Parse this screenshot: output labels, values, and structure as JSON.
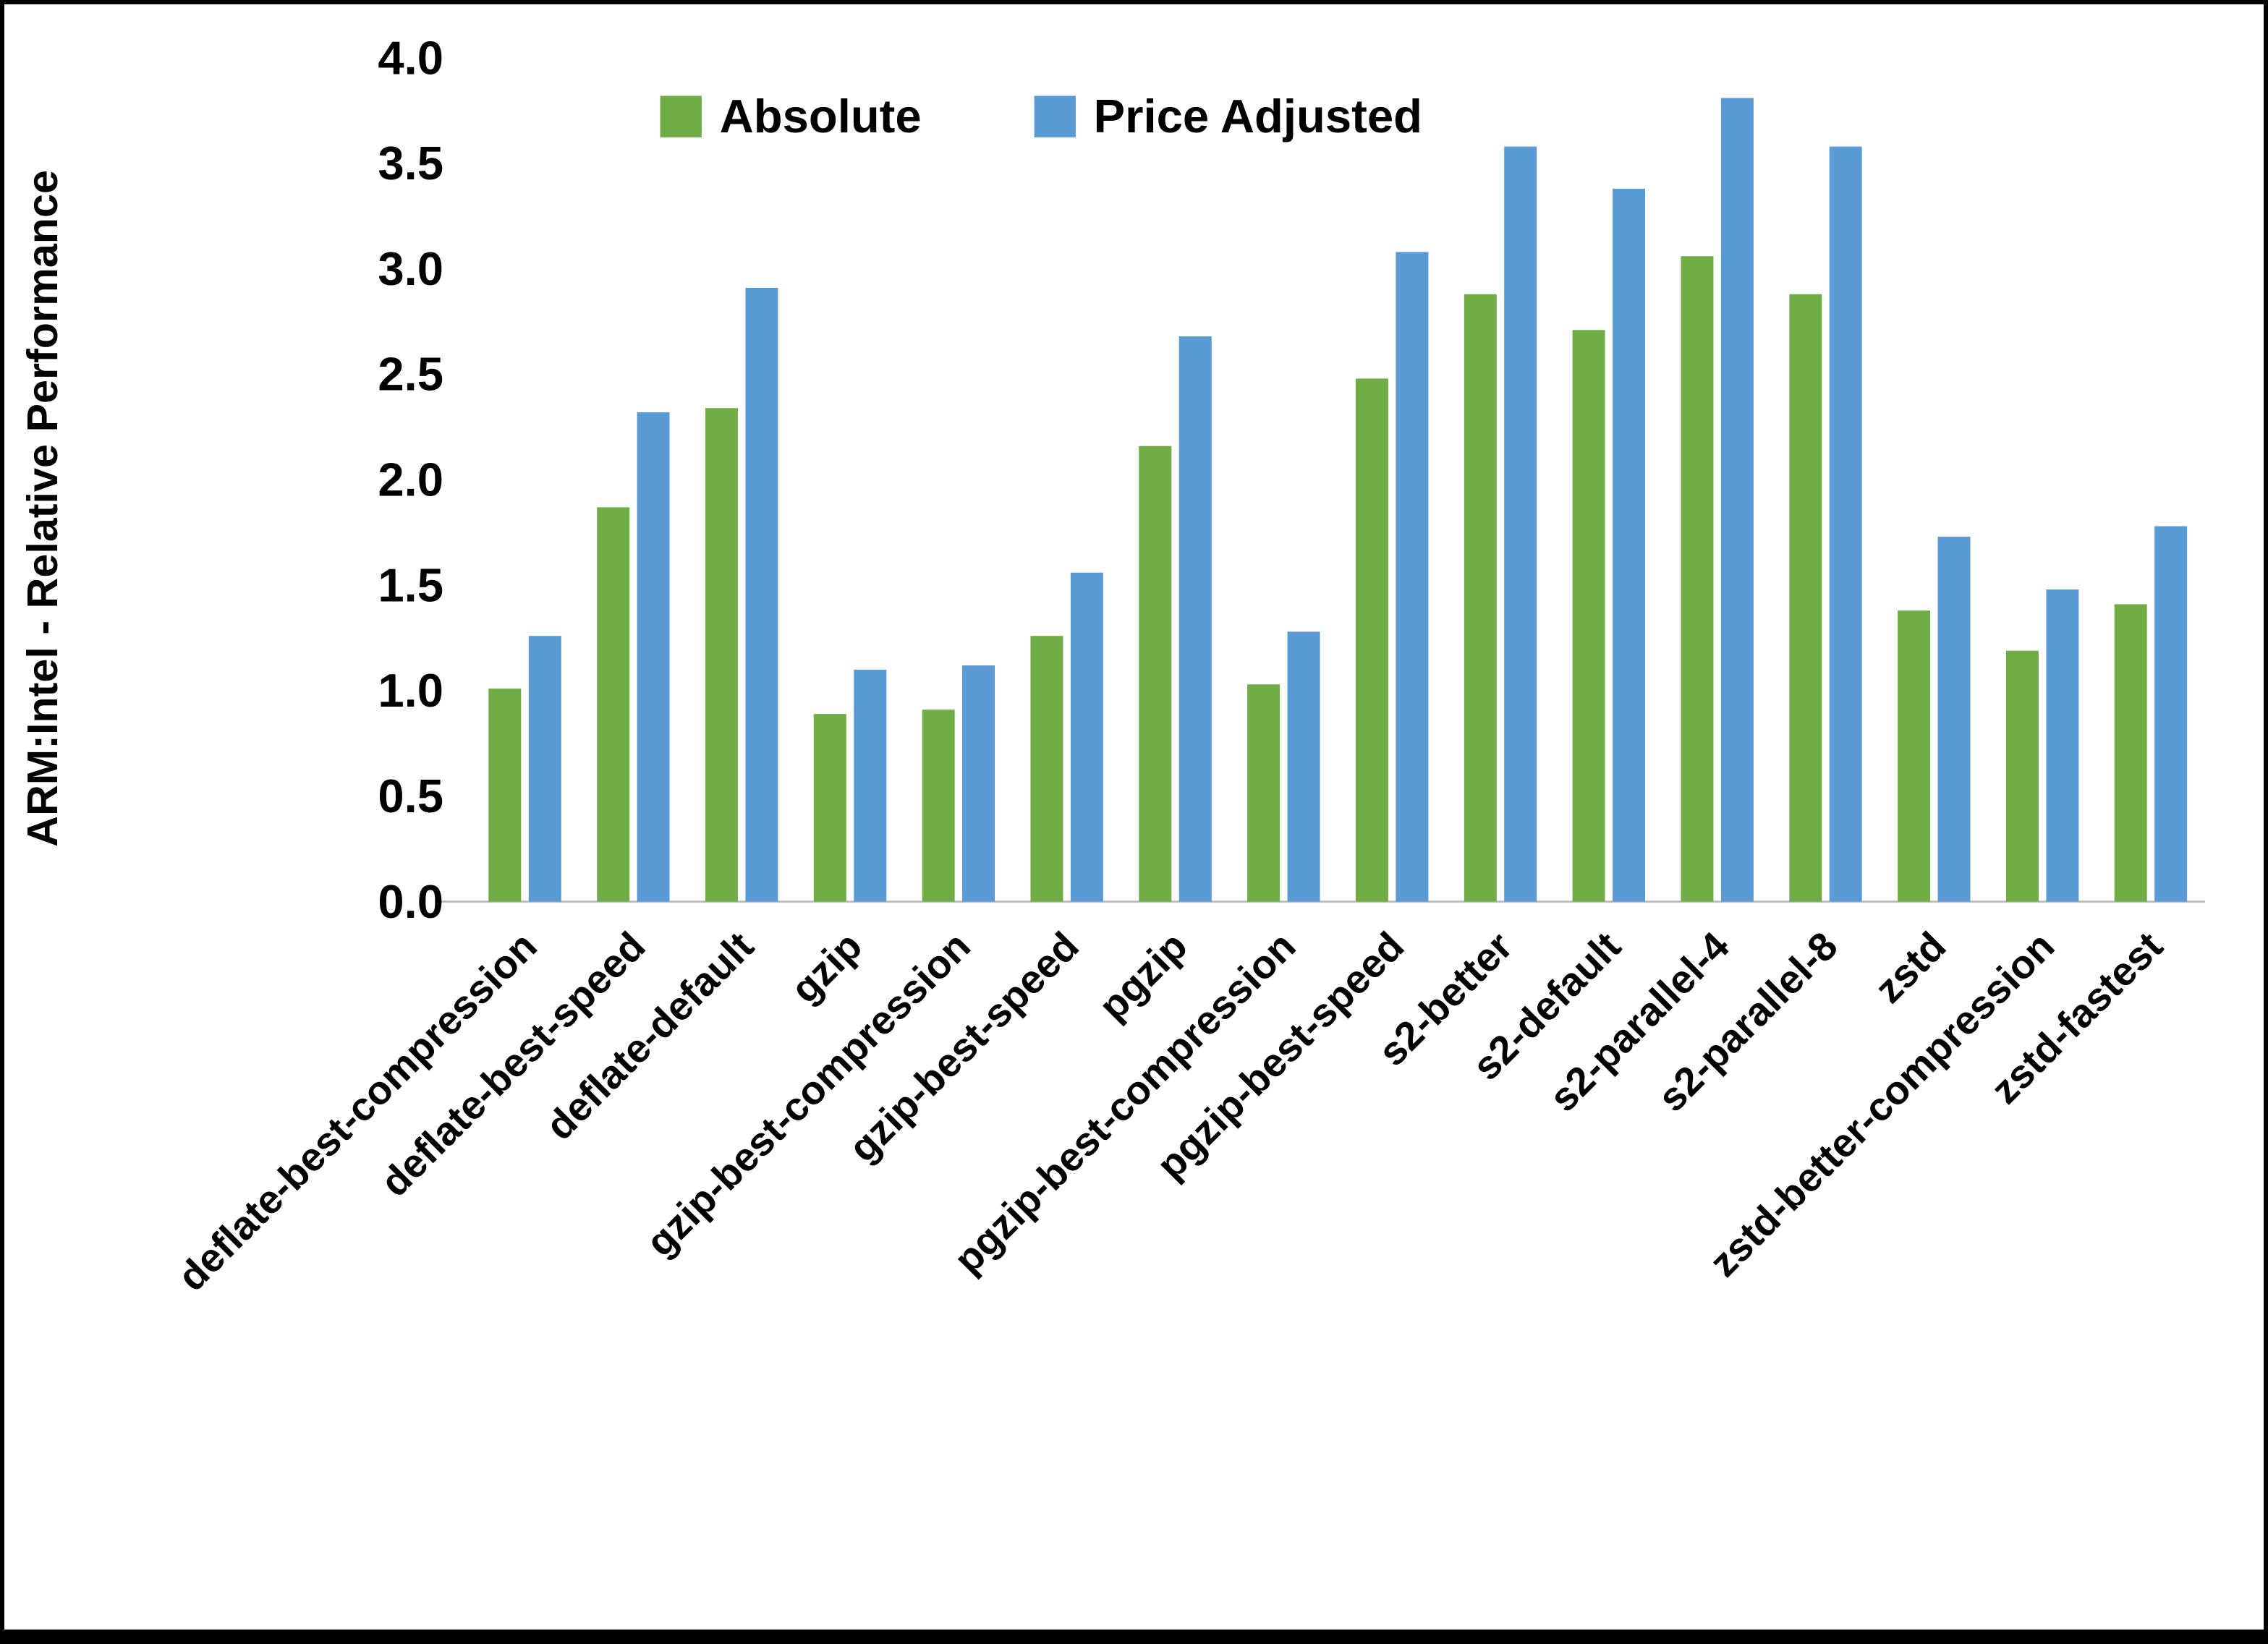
{
  "frame": {
    "background": "#ffffff",
    "border_color": "#000000"
  },
  "chart_data": {
    "type": "bar",
    "title": "",
    "xlabel": "",
    "ylabel": "ARM:Intel - Relative Performance",
    "ylim": [
      0.0,
      4.0
    ],
    "ytick_step": 0.5,
    "ytick_format_decimals": 1,
    "grid": false,
    "legend_position": "top-center",
    "axis_line_color": "#BFBFBF",
    "text_color": "#000000",
    "categories": [
      "deflate-best-compression",
      "deflate-best-speed",
      "deflate-default",
      "gzip",
      "gzip-best-compression",
      "gzip-best-speed",
      "pgzip",
      "pgzip-best-compression",
      "pgzip-best-speed",
      "s2-better",
      "s2-default",
      "s2-parallel-4",
      "s2-parallel-8",
      "zstd",
      "zstd-better-compression",
      "zstd-fastest"
    ],
    "series": [
      {
        "name": "Absolute",
        "color": "#70AD47",
        "values": [
          1.01,
          1.87,
          2.34,
          0.89,
          0.91,
          1.26,
          2.16,
          1.03,
          2.48,
          2.88,
          2.71,
          3.06,
          2.88,
          1.38,
          1.19,
          1.41
        ]
      },
      {
        "name": "Price Adjusted",
        "color": "#5B9BD5",
        "values": [
          1.26,
          2.32,
          2.91,
          1.1,
          1.12,
          1.56,
          2.68,
          1.28,
          3.08,
          3.58,
          3.38,
          3.81,
          3.58,
          1.73,
          1.48,
          1.78
        ]
      }
    ]
  }
}
